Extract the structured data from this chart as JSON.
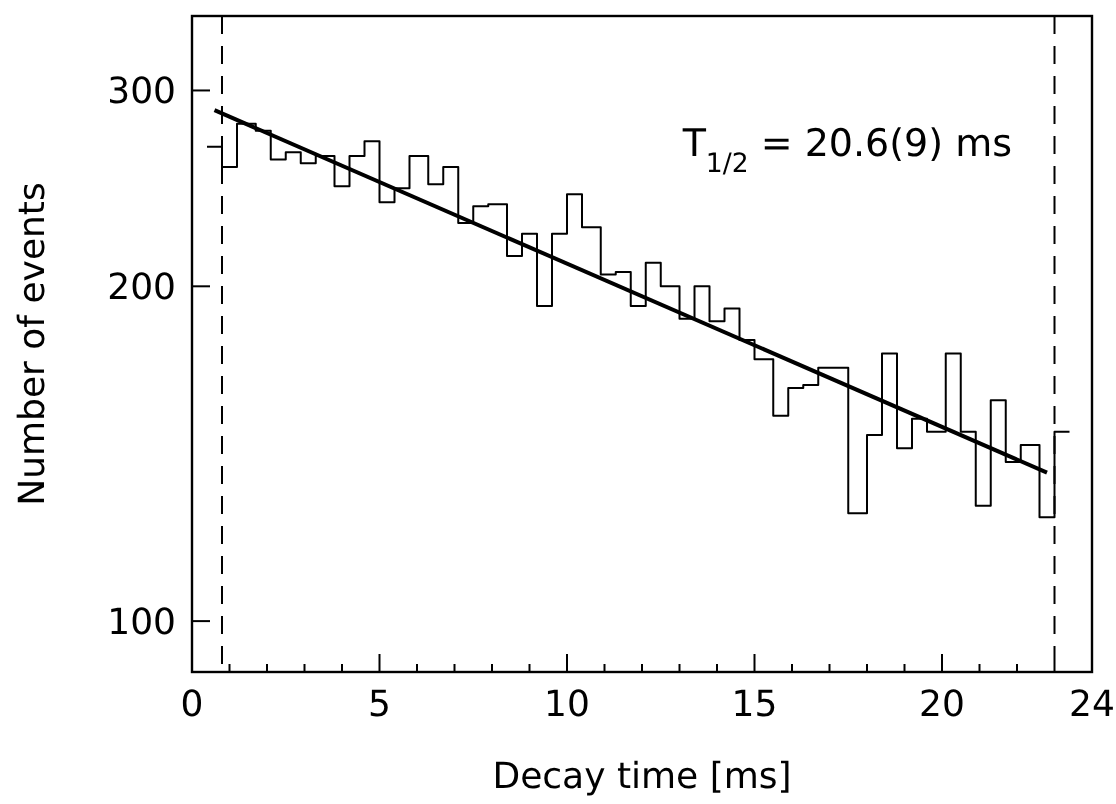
{
  "chart_data": {
    "type": "step",
    "xlabel": "Decay time [ms]",
    "ylabel": "Number of events",
    "x": [
      0.4,
      0.8,
      1.2,
      1.7,
      2.1,
      2.5,
      2.9,
      3.3,
      3.8,
      4.2,
      4.6,
      5.0,
      5.4,
      5.8,
      6.3,
      6.7,
      7.1,
      7.5,
      7.9,
      8.4,
      8.8,
      9.2,
      9.6,
      10.0,
      10.4,
      10.9,
      11.3,
      11.7,
      12.1,
      12.5,
      13.0,
      13.4,
      13.8,
      14.2,
      14.6,
      15.0,
      15.5,
      15.9,
      16.3,
      16.7,
      17.1,
      17.5,
      18.0,
      18.4,
      18.8,
      19.2,
      19.6,
      20.1,
      20.5,
      20.9,
      21.3,
      21.7,
      22.1,
      22.6,
      23.0,
      23.4
    ],
    "values": [
      267,
      256,
      280,
      276,
      260,
      264,
      258,
      262,
      246,
      262,
      270,
      238,
      245,
      262,
      247,
      256,
      228,
      236,
      237,
      213,
      223,
      192,
      223,
      242,
      226,
      205,
      206,
      192,
      210,
      200,
      187,
      200,
      186,
      191,
      179,
      172,
      153,
      162,
      163,
      169,
      169,
      125,
      147,
      174,
      143,
      152,
      148,
      174,
      148,
      127,
      158,
      139,
      144,
      124,
      148,
      148
    ],
    "color": "#000000",
    "series": [
      {
        "type": "line",
        "x": [
          0.6,
          22.8
        ],
        "values": [
          288,
          136
        ],
        "color": "#000000"
      }
    ],
    "log": "y",
    "xlim": [
      0,
      24
    ],
    "ylim": [
      90,
      350
    ],
    "xticks": [
      0,
      {
        "value": 1,
        "label": null
      },
      {
        "value": 2,
        "label": null
      },
      {
        "value": 3,
        "label": null
      },
      {
        "value": 4,
        "label": null
      },
      5,
      {
        "value": 6,
        "label": null
      },
      {
        "value": 7,
        "label": null
      },
      {
        "value": 8,
        "label": null
      },
      {
        "value": 9,
        "label": null
      },
      10,
      {
        "value": 11,
        "label": null
      },
      {
        "value": 12,
        "label": null
      },
      {
        "value": 13,
        "label": null
      },
      {
        "value": 14,
        "label": null
      },
      15,
      {
        "value": 16,
        "label": null
      },
      {
        "value": 17,
        "label": null
      },
      {
        "value": 18,
        "label": null
      },
      {
        "value": 19,
        "label": null
      },
      20,
      {
        "value": 21,
        "label": null
      },
      {
        "value": 22,
        "label": null
      },
      {
        "value": 23,
        "label": null
      },
      24
    ],
    "yticks": [
      100,
      200,
      300
    ],
    "ref_lines": [
      {
        "axis": "x",
        "value": 0.8,
        "line_style": "dashed",
        "color": "#000000"
      },
      {
        "axis": "x",
        "value": 23.0,
        "line_style": "dashed",
        "color": "#000000"
      }
    ],
    "annotations": [
      "T$_{1/2}$ = 20.6(9) ms"
    ],
    "grid": false
  }
}
